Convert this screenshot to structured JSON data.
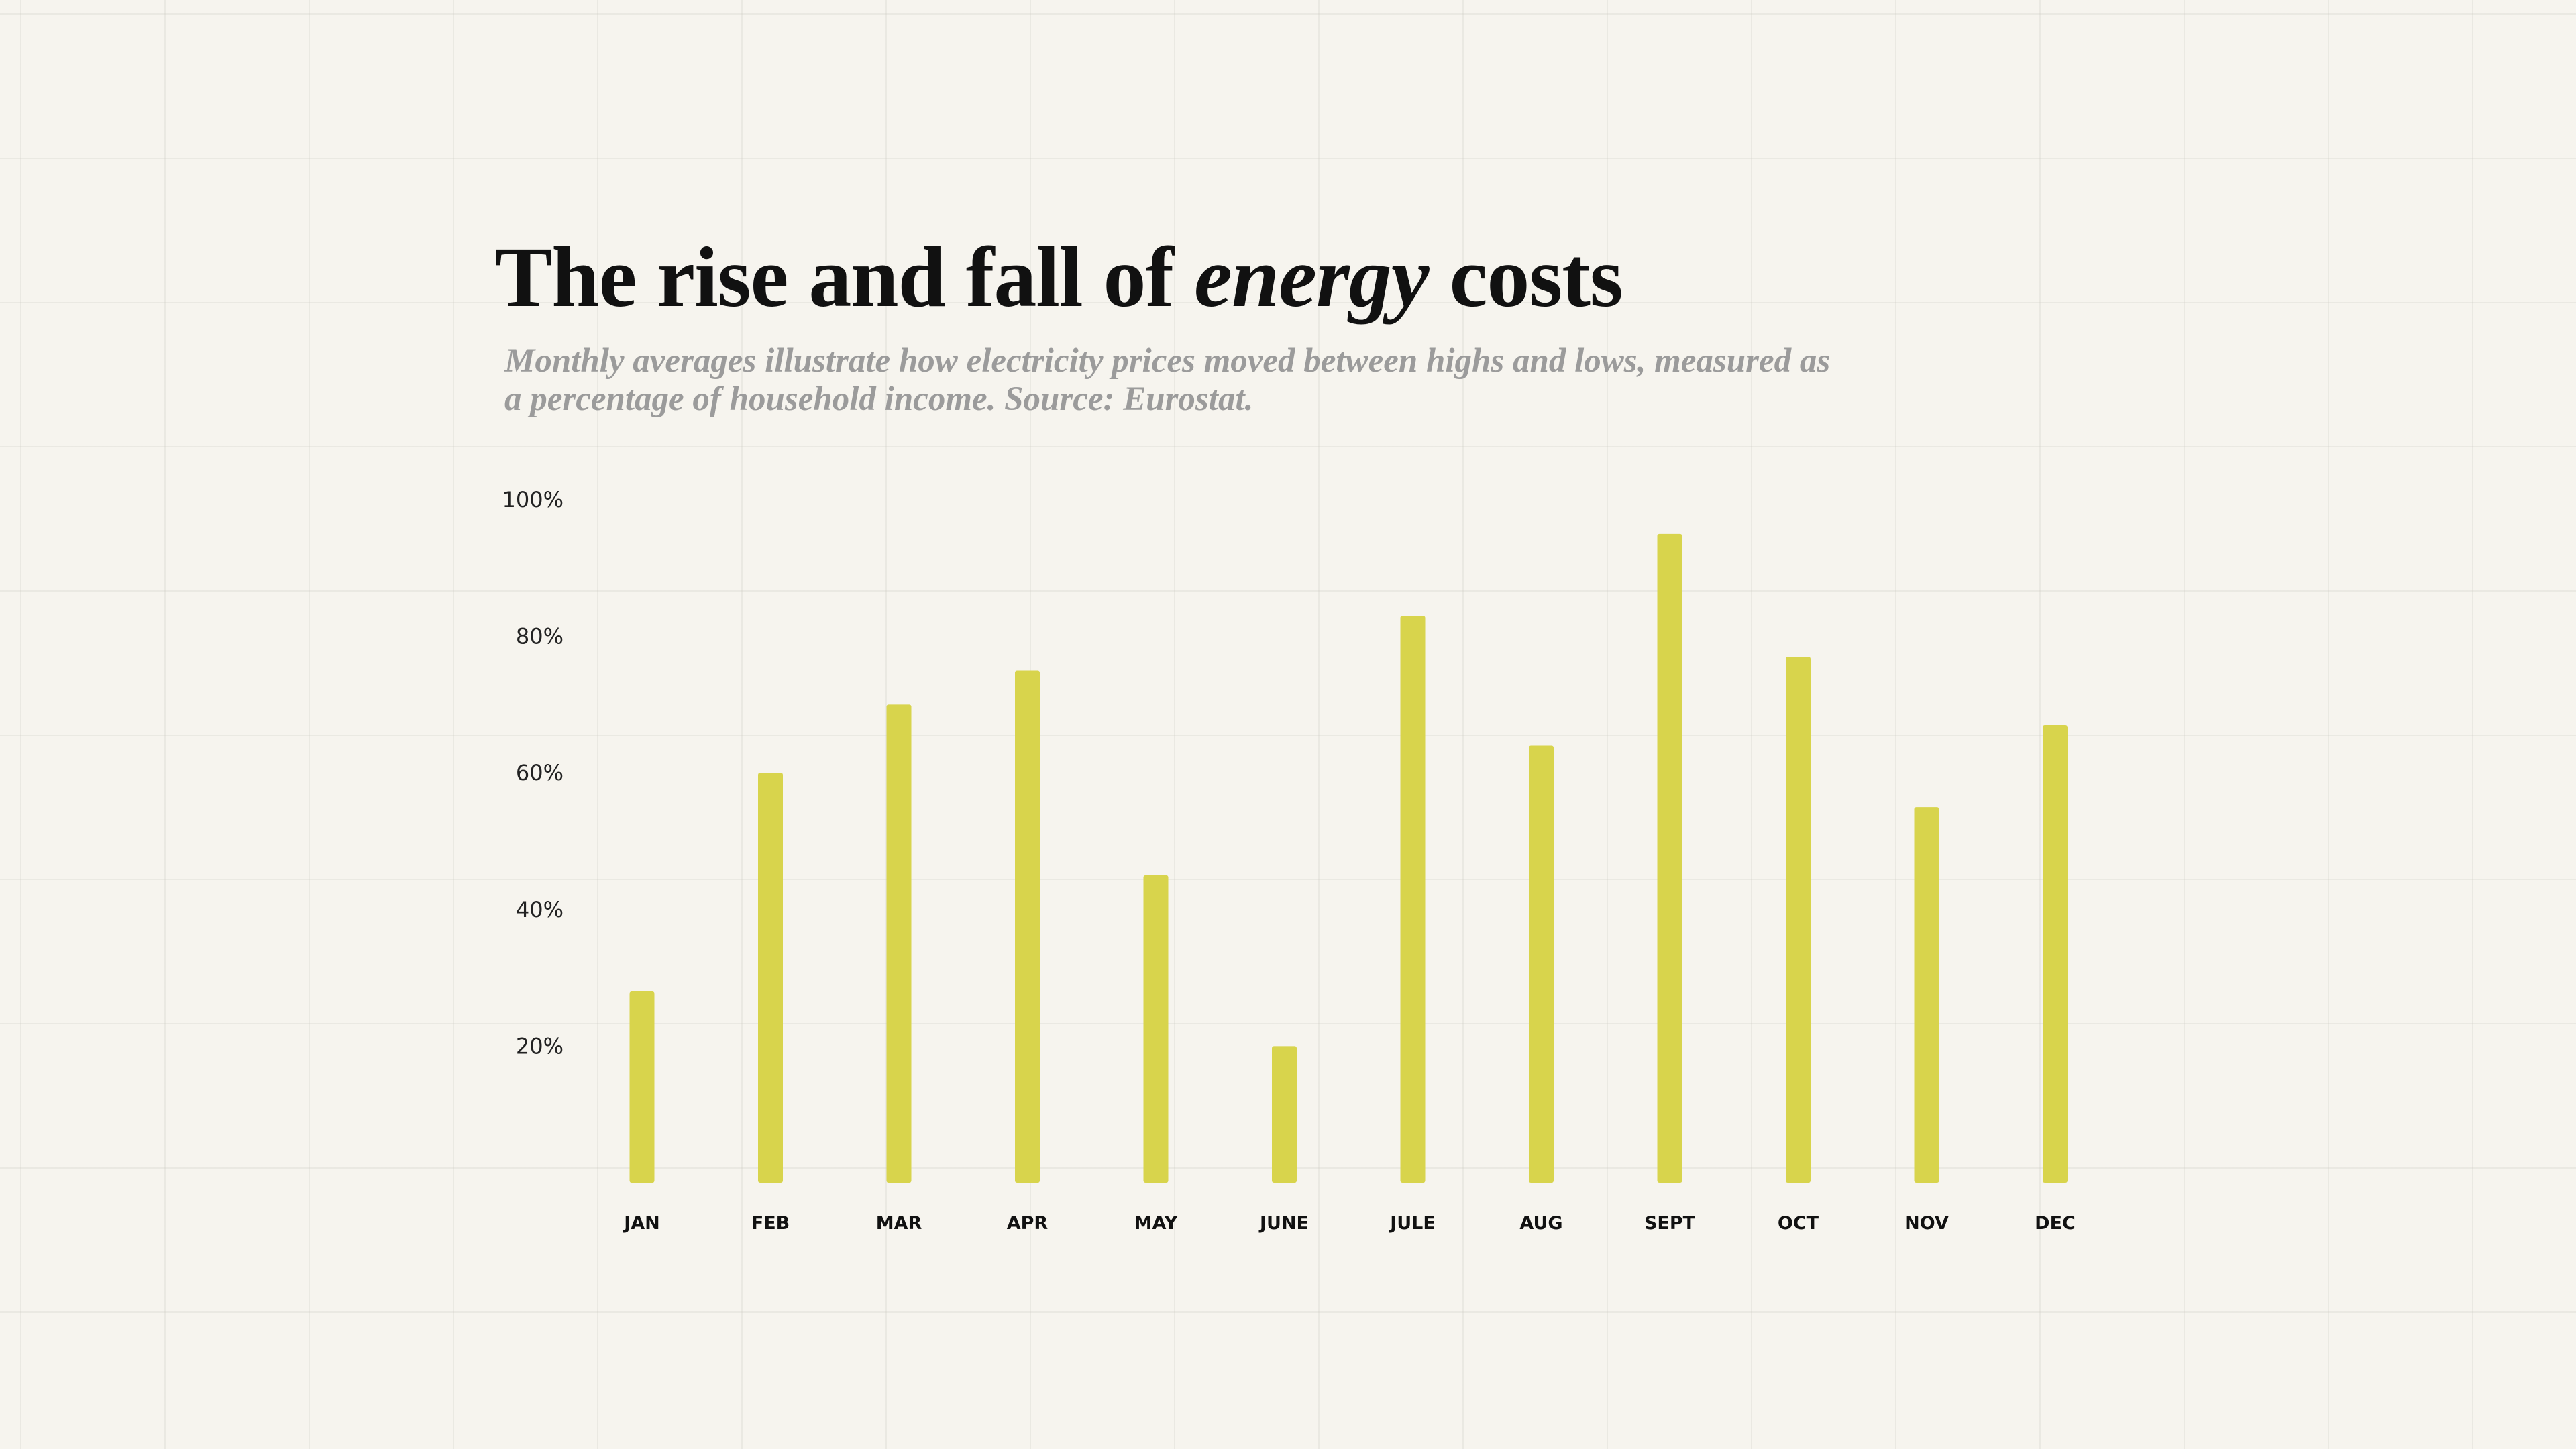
{
  "title": {
    "pre": "The rise and fall of ",
    "em": "energy",
    "post": " costs"
  },
  "subtitle": "Monthly averages illustrate how electricity prices moved between highs and lows, measured as a percentage of household income. Source: Eurostat.",
  "chart_data": {
    "type": "bar",
    "title": "The rise and fall of energy costs",
    "xlabel": "",
    "ylabel": "",
    "ylim": [
      0,
      100
    ],
    "yticks": [
      20,
      40,
      60,
      80,
      100
    ],
    "ytick_labels": [
      "20%",
      "40%",
      "60%",
      "80%",
      "100%"
    ],
    "categories": [
      "JAN",
      "FEB",
      "MAR",
      "APR",
      "MAY",
      "JUNE",
      "JULE",
      "AUG",
      "SEPT",
      "OCT",
      "NOV",
      "DEC"
    ],
    "values": [
      28,
      60,
      70,
      75,
      45,
      20,
      83,
      64,
      95,
      77,
      55,
      67
    ],
    "grid": false,
    "bar_color": "#d8d44c"
  }
}
